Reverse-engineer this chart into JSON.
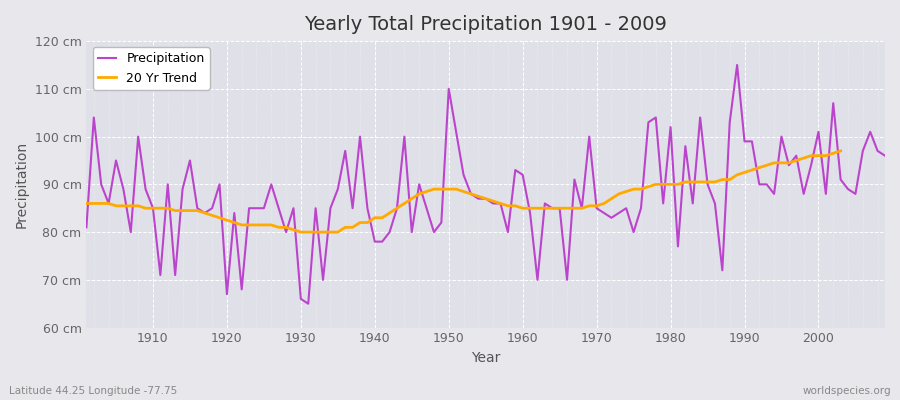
{
  "title": "Yearly Total Precipitation 1901 - 2009",
  "xlabel": "Year",
  "ylabel": "Precipitation",
  "subtitle": "Latitude 44.25 Longitude -77.75",
  "watermark": "worldspecies.org",
  "ylim": [
    60,
    120
  ],
  "yticks": [
    60,
    70,
    80,
    90,
    100,
    110,
    120
  ],
  "ytick_labels": [
    "60 cm",
    "70 cm",
    "80 cm",
    "90 cm",
    "100 cm",
    "110 cm",
    "120 cm"
  ],
  "precip_color": "#bb44cc",
  "trend_color": "#ffaa00",
  "bg_color": "#e8e8ec",
  "plot_bg_color": "#e0e0e8",
  "grid_color": "#ffffff",
  "years": [
    1901,
    1902,
    1903,
    1904,
    1905,
    1906,
    1907,
    1908,
    1909,
    1910,
    1911,
    1912,
    1913,
    1914,
    1915,
    1916,
    1917,
    1918,
    1919,
    1920,
    1921,
    1922,
    1923,
    1924,
    1925,
    1926,
    1927,
    1928,
    1929,
    1930,
    1931,
    1932,
    1933,
    1934,
    1935,
    1936,
    1937,
    1938,
    1939,
    1940,
    1941,
    1942,
    1943,
    1944,
    1945,
    1946,
    1947,
    1948,
    1949,
    1950,
    1951,
    1952,
    1953,
    1954,
    1955,
    1956,
    1957,
    1958,
    1959,
    1960,
    1961,
    1962,
    1963,
    1964,
    1965,
    1966,
    1967,
    1968,
    1969,
    1970,
    1971,
    1972,
    1973,
    1974,
    1975,
    1976,
    1977,
    1978,
    1979,
    1980,
    1981,
    1982,
    1983,
    1984,
    1985,
    1986,
    1987,
    1988,
    1989,
    1990,
    1991,
    1992,
    1993,
    1994,
    1995,
    1996,
    1997,
    1998,
    1999,
    2000,
    2001,
    2002,
    2003,
    2004,
    2005,
    2006,
    2007,
    2008,
    2009
  ],
  "precip": [
    81,
    104,
    90,
    86,
    95,
    89,
    80,
    100,
    89,
    85,
    71,
    90,
    71,
    89,
    95,
    85,
    84,
    85,
    90,
    67,
    84,
    68,
    85,
    85,
    85,
    90,
    85,
    80,
    85,
    66,
    65,
    85,
    70,
    85,
    89,
    97,
    85,
    100,
    85,
    78,
    78,
    80,
    85,
    100,
    80,
    90,
    85,
    80,
    82,
    110,
    101,
    92,
    88,
    87,
    87,
    86,
    86,
    80,
    93,
    92,
    84,
    70,
    86,
    85,
    85,
    70,
    91,
    85,
    100,
    85,
    84,
    83,
    84,
    85,
    80,
    85,
    103,
    104,
    86,
    102,
    77,
    98,
    86,
    104,
    90,
    86,
    72,
    103,
    115,
    99,
    99,
    90,
    90,
    88,
    100,
    94,
    96,
    88,
    94,
    101,
    88,
    107,
    91,
    89,
    88,
    97,
    101,
    97,
    96
  ],
  "trend_years": [
    1901,
    1902,
    1903,
    1904,
    1905,
    1906,
    1907,
    1908,
    1909,
    1910,
    1911,
    1912,
    1913,
    1914,
    1915,
    1916,
    1917,
    1918,
    1919,
    1920,
    1921,
    1922,
    1923,
    1924,
    1925,
    1926,
    1927,
    1928,
    1929,
    1930,
    1931,
    1932,
    1933,
    1934,
    1935,
    1936,
    1937,
    1938,
    1939,
    1940,
    1941,
    1942,
    1943,
    1944,
    1945,
    1946,
    1947,
    1948,
    1949,
    1950,
    1951,
    1952,
    1953,
    1954,
    1955,
    1956,
    1957,
    1958,
    1959,
    1960,
    1961,
    1962,
    1963,
    1964,
    1965,
    1966,
    1967,
    1968,
    1969,
    1970,
    1971,
    1972,
    1973,
    1974,
    1975,
    1976,
    1977,
    1978,
    1979,
    1980,
    1981,
    1982,
    1983,
    1984,
    1985,
    1986,
    1987,
    1988,
    1989,
    1990,
    1991,
    1992,
    1993,
    1994,
    1995,
    1996,
    1997,
    1998,
    1999,
    2000,
    2001,
    2002,
    2003
  ],
  "trend": [
    86.0,
    86.0,
    86.0,
    86.0,
    85.5,
    85.5,
    85.5,
    85.5,
    85.0,
    85.0,
    85.0,
    85.0,
    84.5,
    84.5,
    84.5,
    84.5,
    84.0,
    83.5,
    83.0,
    82.5,
    82.0,
    81.5,
    81.5,
    81.5,
    81.5,
    81.5,
    81.0,
    81.0,
    80.5,
    80.0,
    80.0,
    80.0,
    80.0,
    80.0,
    80.0,
    81.0,
    81.0,
    82.0,
    82.0,
    83.0,
    83.0,
    84.0,
    85.0,
    86.0,
    87.0,
    88.0,
    88.5,
    89.0,
    89.0,
    89.0,
    89.0,
    88.5,
    88.0,
    87.5,
    87.0,
    86.5,
    86.0,
    85.5,
    85.5,
    85.0,
    85.0,
    85.0,
    85.0,
    85.0,
    85.0,
    85.0,
    85.0,
    85.0,
    85.5,
    85.5,
    86.0,
    87.0,
    88.0,
    88.5,
    89.0,
    89.0,
    89.5,
    90.0,
    90.0,
    90.0,
    90.0,
    90.5,
    90.5,
    90.5,
    90.5,
    90.5,
    91.0,
    91.0,
    92.0,
    92.5,
    93.0,
    93.5,
    94.0,
    94.5,
    94.5,
    94.5,
    95.0,
    95.5,
    96.0,
    96.0,
    96.0,
    96.5,
    97.0
  ]
}
